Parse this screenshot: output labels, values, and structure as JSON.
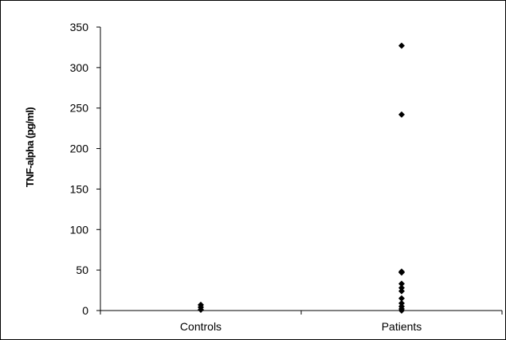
{
  "chart_data": {
    "type": "scatter",
    "title": "",
    "xlabel": "",
    "ylabel": "TNF-alpha (pg/ml)",
    "categories": [
      "Controls",
      "Patients"
    ],
    "ylim": [
      0,
      350
    ],
    "yticks": [
      0,
      50,
      100,
      150,
      200,
      250,
      300,
      350
    ],
    "grid": false,
    "legend": "none",
    "marker": "diamond",
    "marker_color": "#000000",
    "series": [
      {
        "points": [
          {
            "category": "Controls",
            "y": 7
          },
          {
            "category": "Controls",
            "y": 4
          },
          {
            "category": "Controls",
            "y": 1
          },
          {
            "category": "Patients",
            "y": 327
          },
          {
            "category": "Patients",
            "y": 242
          },
          {
            "category": "Patients",
            "y": 48
          },
          {
            "category": "Patients",
            "y": 47
          },
          {
            "category": "Patients",
            "y": 33
          },
          {
            "category": "Patients",
            "y": 28
          },
          {
            "category": "Patients",
            "y": 24
          },
          {
            "category": "Patients",
            "y": 15
          },
          {
            "category": "Patients",
            "y": 9
          },
          {
            "category": "Patients",
            "y": 5
          },
          {
            "category": "Patients",
            "y": 2
          },
          {
            "category": "Patients",
            "y": 0
          }
        ]
      }
    ]
  }
}
